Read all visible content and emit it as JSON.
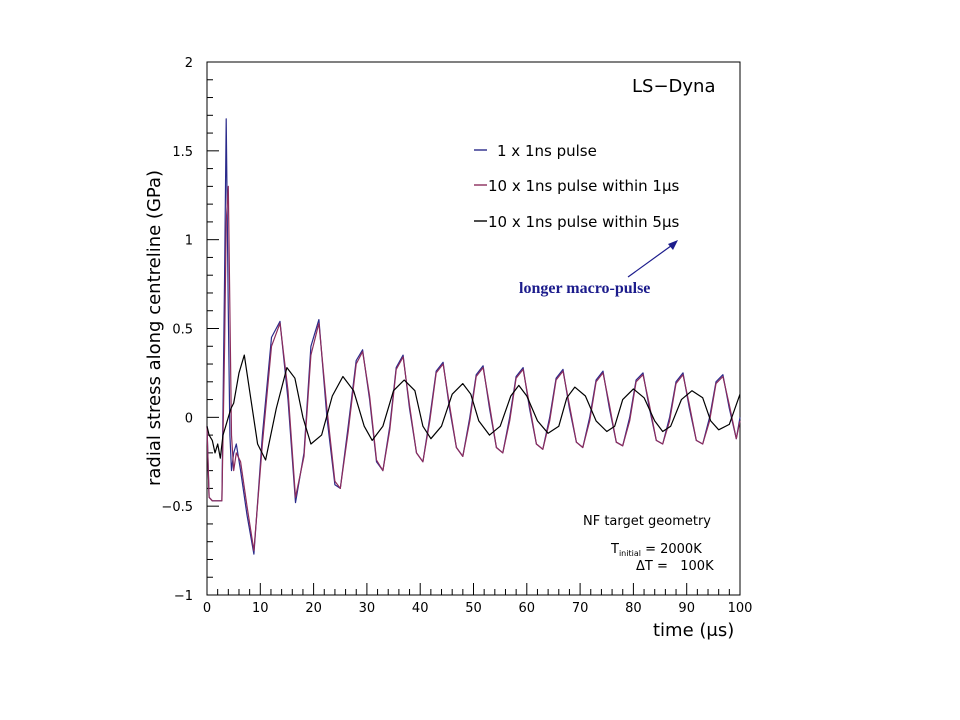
{
  "chart_data": {
    "type": "line",
    "title": "LS−Dyna",
    "xlabel": "time (μs)",
    "ylabel": "radial stress along centreline (GPa)",
    "xlim": [
      0,
      100
    ],
    "ylim": [
      -1,
      2
    ],
    "x_ticks": [
      "0",
      "10",
      "20",
      "30",
      "40",
      "50",
      "60",
      "70",
      "80",
      "90",
      "100"
    ],
    "y_ticks": [
      "−1",
      "−0.5",
      "0",
      "0.5",
      "1",
      "1.5",
      "2"
    ],
    "series": [
      {
        "name": "1 x 1ns pulse",
        "color": "#2a2a8a",
        "x": [
          0,
          0.4,
          1,
          2,
          2.8,
          3.3,
          3.6,
          4.0,
          4.3,
          4.6,
          5.0,
          5.5,
          6.3,
          7.5,
          8.8,
          10.4,
          12.1,
          13.7,
          15.2,
          16.6,
          18.2,
          19.5,
          21.0,
          22.5,
          24.0,
          25.0,
          26.5,
          28.0,
          29.2,
          30.5,
          31.8,
          33.0,
          34.3,
          35.5,
          36.8,
          38.0,
          39.3,
          40.5,
          41.8,
          43.0,
          44.3,
          45.5,
          46.8,
          48.0,
          49.3,
          50.5,
          51.8,
          53.0,
          54.3,
          55.5,
          56.8,
          58.0,
          59.3,
          60.5,
          61.8,
          63.0,
          64.3,
          65.5,
          66.8,
          68.0,
          69.3,
          70.5,
          71.8,
          73.0,
          74.3,
          75.5,
          76.8,
          78.0,
          79.3,
          80.5,
          81.8,
          83.0,
          84.3,
          85.5,
          86.8,
          88.0,
          89.3,
          90.5,
          91.8,
          93.0,
          94.3,
          95.5,
          96.8,
          98.0,
          99.3,
          100
        ],
        "y": [
          -0.05,
          -0.45,
          -0.47,
          -0.47,
          -0.47,
          0.8,
          1.68,
          0.6,
          -0.1,
          -0.3,
          -0.2,
          -0.15,
          -0.3,
          -0.55,
          -0.77,
          -0.1,
          0.45,
          0.54,
          0.1,
          -0.48,
          -0.2,
          0.4,
          0.55,
          0.0,
          -0.38,
          -0.4,
          -0.05,
          0.32,
          0.38,
          0.1,
          -0.25,
          -0.3,
          -0.05,
          0.28,
          0.35,
          0.05,
          -0.2,
          -0.25,
          0.0,
          0.26,
          0.31,
          0.05,
          -0.17,
          -0.22,
          0.0,
          0.24,
          0.29,
          0.05,
          -0.17,
          -0.2,
          0.0,
          0.23,
          0.28,
          0.05,
          -0.15,
          -0.18,
          0.0,
          0.22,
          0.27,
          0.05,
          -0.14,
          -0.17,
          0.0,
          0.21,
          0.26,
          0.05,
          -0.14,
          -0.16,
          0.0,
          0.21,
          0.25,
          0.05,
          -0.13,
          -0.15,
          0.0,
          0.2,
          0.25,
          0.05,
          -0.13,
          -0.15,
          0.0,
          0.2,
          0.24,
          0.05,
          -0.12,
          0.0
        ]
      },
      {
        "name": "10 x 1ns pulse within 1μs",
        "color": "#8c2c5c",
        "x": [
          0,
          0.4,
          1,
          2,
          2.8,
          3.3,
          3.6,
          4.0,
          4.3,
          4.6,
          5.0,
          5.5,
          6.3,
          7.5,
          8.8,
          10.4,
          12.1,
          13.7,
          15.2,
          16.6,
          18.2,
          19.5,
          21.0,
          22.5,
          24.0,
          25.0,
          26.5,
          28.0,
          29.2,
          30.5,
          31.8,
          33.0,
          34.3,
          35.5,
          36.8,
          38.0,
          39.3,
          40.5,
          41.8,
          43.0,
          44.3,
          45.5,
          46.8,
          48.0,
          49.3,
          50.5,
          51.8,
          53.0,
          54.3,
          55.5,
          56.8,
          58.0,
          59.3,
          60.5,
          61.8,
          63.0,
          64.3,
          65.5,
          66.8,
          68.0,
          69.3,
          70.5,
          71.8,
          73.0,
          74.3,
          75.5,
          76.8,
          78.0,
          79.3,
          80.5,
          81.8,
          83.0,
          84.3,
          85.5,
          86.8,
          88.0,
          89.3,
          90.5,
          91.8,
          93.0,
          94.3,
          95.5,
          96.8,
          98.0,
          99.3,
          100
        ],
        "y": [
          -0.05,
          -0.45,
          -0.47,
          -0.47,
          -0.47,
          0.4,
          1.1,
          1.3,
          0.6,
          -0.1,
          -0.3,
          -0.2,
          -0.25,
          -0.5,
          -0.75,
          -0.15,
          0.4,
          0.53,
          0.15,
          -0.45,
          -0.22,
          0.35,
          0.53,
          0.05,
          -0.36,
          -0.4,
          -0.08,
          0.3,
          0.37,
          0.12,
          -0.24,
          -0.3,
          -0.07,
          0.27,
          0.34,
          0.07,
          -0.2,
          -0.25,
          -0.02,
          0.25,
          0.3,
          0.07,
          -0.17,
          -0.22,
          -0.02,
          0.23,
          0.28,
          0.07,
          -0.17,
          -0.2,
          -0.02,
          0.22,
          0.27,
          0.07,
          -0.15,
          -0.18,
          -0.02,
          0.21,
          0.26,
          0.07,
          -0.14,
          -0.17,
          -0.02,
          0.2,
          0.25,
          0.07,
          -0.14,
          -0.16,
          -0.02,
          0.2,
          0.24,
          0.07,
          -0.13,
          -0.15,
          -0.02,
          0.19,
          0.24,
          0.07,
          -0.13,
          -0.15,
          -0.02,
          0.19,
          0.23,
          0.07,
          -0.12,
          -0.02
        ]
      },
      {
        "name": "10 x 1ns pulse within 5μs",
        "color": "#000000",
        "x": [
          0,
          0.4,
          1,
          1.5,
          2.0,
          2.5,
          3.0,
          3.5,
          4.0,
          4.5,
          5.0,
          6.0,
          7.0,
          8.0,
          9.5,
          11.0,
          13.0,
          15.0,
          16.5,
          18.0,
          19.5,
          21.5,
          23.5,
          25.5,
          27.5,
          29.5,
          31.0,
          33.0,
          35.0,
          37.0,
          39.0,
          40.5,
          42.0,
          44.0,
          46.0,
          48.0,
          49.5,
          51.0,
          53.0,
          55.0,
          57.0,
          58.5,
          60.0,
          62.0,
          64.0,
          66.0,
          67.5,
          69.0,
          71.0,
          73.0,
          75.0,
          76.5,
          78.0,
          80.0,
          82.0,
          84.0,
          85.5,
          87.0,
          89.0,
          91.0,
          93.0,
          94.5,
          96.0,
          98.0,
          100
        ],
        "y": [
          -0.05,
          -0.1,
          -0.13,
          -0.2,
          -0.15,
          -0.23,
          -0.1,
          -0.05,
          0.0,
          0.05,
          0.08,
          0.25,
          0.35,
          0.15,
          -0.15,
          -0.24,
          0.05,
          0.28,
          0.22,
          0.0,
          -0.15,
          -0.1,
          0.12,
          0.23,
          0.15,
          -0.05,
          -0.13,
          -0.05,
          0.15,
          0.21,
          0.15,
          -0.05,
          -0.12,
          -0.05,
          0.13,
          0.19,
          0.13,
          -0.02,
          -0.1,
          -0.05,
          0.12,
          0.18,
          0.12,
          -0.02,
          -0.09,
          -0.05,
          0.11,
          0.17,
          0.12,
          -0.02,
          -0.08,
          -0.05,
          0.1,
          0.16,
          0.11,
          -0.02,
          -0.08,
          -0.05,
          0.1,
          0.15,
          0.11,
          -0.02,
          -0.07,
          -0.04,
          0.13
        ]
      }
    ],
    "legend": "top-right",
    "grid": false,
    "annotations": {
      "corner_label": "LS−Dyna",
      "arrow_label": "longer macro-pulse",
      "arrow_color": "#1c1c8c",
      "info_line1": "NF target geometry",
      "info_line2_prefix": "T",
      "info_line2_sub": "initial",
      "info_line2_rest": " = 2000K",
      "info_line3": "ΔT =   100K"
    }
  }
}
